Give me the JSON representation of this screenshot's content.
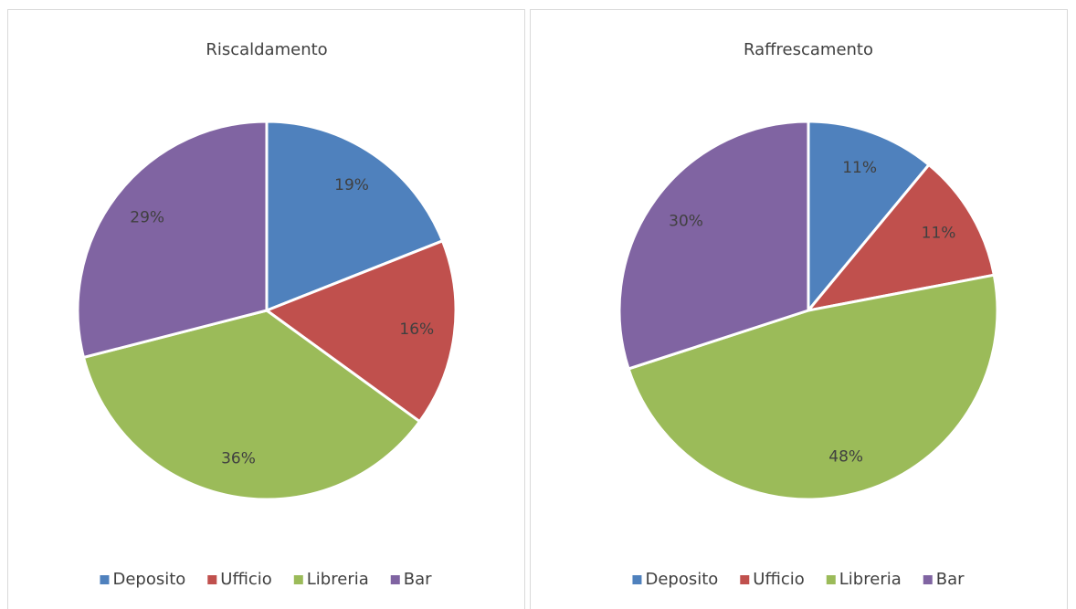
{
  "chart_data": [
    {
      "type": "pie",
      "title": "Riscaldamento",
      "categories": [
        "Deposito",
        "Ufficio",
        "Libreria",
        "Bar"
      ],
      "values": [
        19,
        16,
        36,
        29
      ],
      "value_labels": [
        "19%",
        "16%",
        "36%",
        "29%"
      ],
      "colors": [
        "#4f81bd",
        "#c0504d",
        "#9bbb59",
        "#8064a2"
      ],
      "legend": "bottom"
    },
    {
      "type": "pie",
      "title": "Raffrescamento",
      "categories": [
        "Deposito",
        "Ufficio",
        "Libreria",
        "Bar"
      ],
      "values": [
        11,
        11,
        48,
        30
      ],
      "value_labels": [
        "11%",
        "11%",
        "48%",
        "30%"
      ],
      "colors": [
        "#4f81bd",
        "#c0504d",
        "#9bbb59",
        "#8064a2"
      ],
      "legend": "bottom"
    }
  ]
}
